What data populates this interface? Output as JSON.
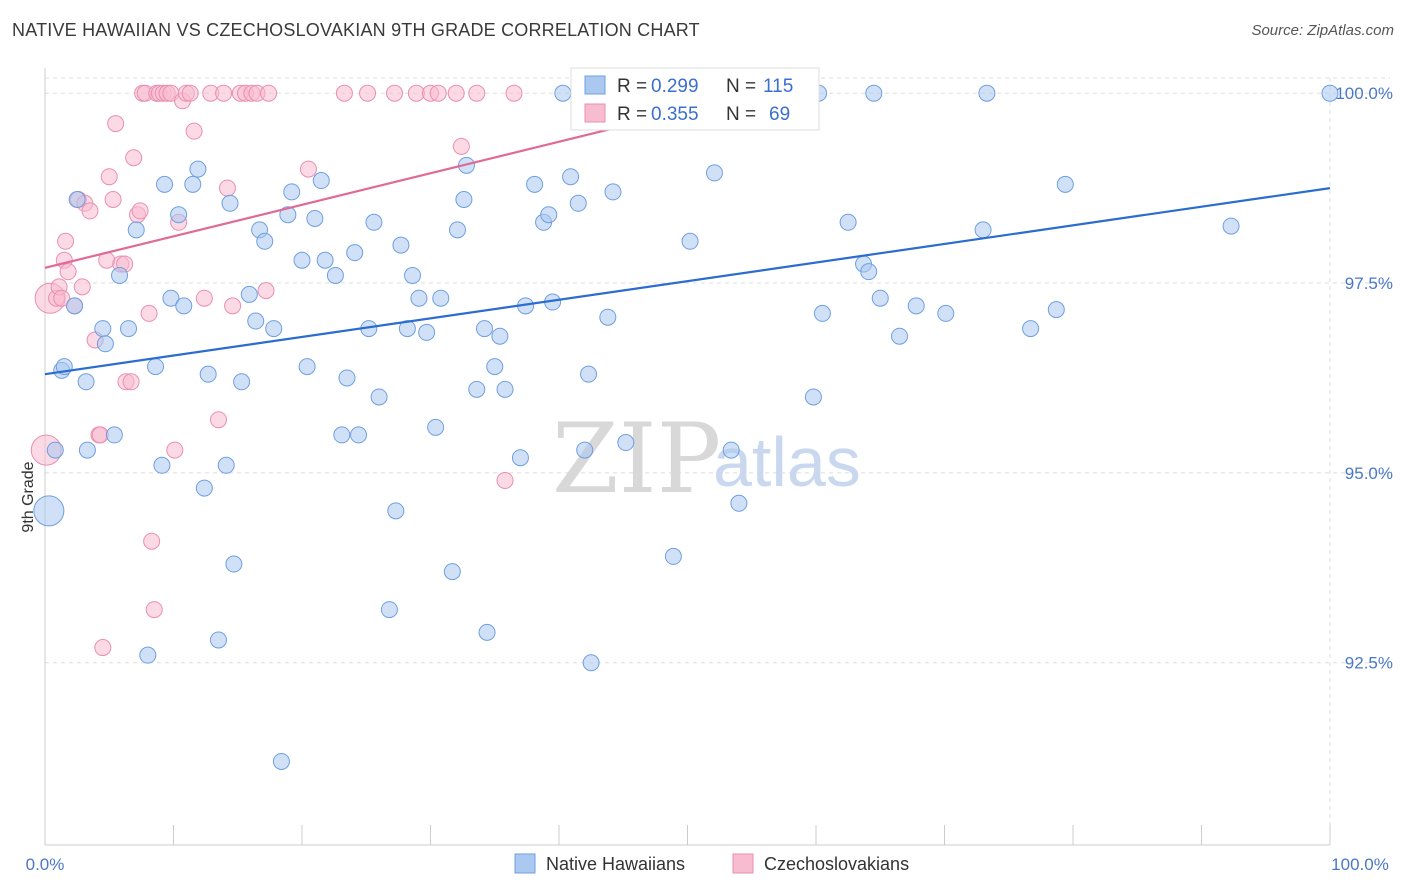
{
  "title": "NATIVE HAWAIIAN VS CZECHOSLOVAKIAN 9TH GRADE CORRELATION CHART",
  "source": "Source: ZipAtlas.com",
  "watermark": {
    "zip": "ZIP",
    "atlas": "atlas"
  },
  "legend_box": {
    "rows": [
      {
        "r_label": "R =",
        "r_value": "0.299",
        "n_label": "N =",
        "n_value": "115"
      },
      {
        "r_label": "R =",
        "r_value": "0.355",
        "n_label": "N =",
        "n_value": "69"
      }
    ]
  },
  "bottom_legend": [
    "Native Hawaiians",
    "Czechoslovakians"
  ],
  "colors": {
    "blue_fill": "#aac8f0",
    "blue_stroke": "#6f9fe0",
    "blue_line": "#2b6ccf",
    "pink_fill": "#f7bcd0",
    "pink_stroke": "#ea8fb0",
    "pink_line": "#e06a95",
    "grid": "#dddddd",
    "tick_text": "#4a78c8"
  },
  "chart_data": {
    "type": "scatter",
    "title": "NATIVE HAWAIIAN VS CZECHOSLOVAKIAN 9TH GRADE CORRELATION CHART",
    "xlabel": "",
    "ylabel": "9th Grade",
    "xlim": [
      0,
      100
    ],
    "ylim": [
      90.1,
      100.2
    ],
    "x_tick_labels": [
      "0.0%",
      "100.0%"
    ],
    "y_ticks": [
      92.5,
      95.0,
      97.5,
      100.0
    ],
    "y_tick_labels": [
      "92.5%",
      "95.0%",
      "97.5%",
      "100.0%"
    ],
    "grid": true,
    "legend_position": "top-center",
    "series": [
      {
        "name": "Native Hawaiians",
        "color": "#aac8f0",
        "R": 0.299,
        "N": 115,
        "trend": {
          "x": [
            0,
            100
          ],
          "y": [
            96.3,
            98.75
          ]
        },
        "points": [
          [
            0.3,
            94.5
          ],
          [
            0.8,
            95.3
          ],
          [
            1.3,
            96.35
          ],
          [
            1.5,
            96.4
          ],
          [
            2.3,
            97.2
          ],
          [
            2.5,
            98.6
          ],
          [
            3.2,
            96.2
          ],
          [
            3.3,
            95.3
          ],
          [
            4.5,
            96.9
          ],
          [
            4.7,
            96.7
          ],
          [
            5.4,
            95.5
          ],
          [
            5.8,
            97.6
          ],
          [
            6.5,
            96.9
          ],
          [
            7.1,
            98.2
          ],
          [
            8.0,
            92.6
          ],
          [
            8.6,
            96.4
          ],
          [
            9.1,
            95.1
          ],
          [
            9.3,
            98.8
          ],
          [
            9.8,
            97.3
          ],
          [
            10.4,
            98.4
          ],
          [
            10.8,
            97.2
          ],
          [
            11.5,
            98.8
          ],
          [
            11.9,
            99.0
          ],
          [
            12.4,
            94.8
          ],
          [
            12.7,
            96.3
          ],
          [
            13.5,
            92.8
          ],
          [
            14.1,
            95.1
          ],
          [
            14.4,
            98.55
          ],
          [
            14.7,
            93.8
          ],
          [
            15.3,
            96.2
          ],
          [
            15.9,
            97.35
          ],
          [
            16.4,
            97.0
          ],
          [
            16.7,
            98.2
          ],
          [
            17.1,
            98.05
          ],
          [
            17.8,
            96.9
          ],
          [
            18.4,
            91.2
          ],
          [
            18.9,
            98.4
          ],
          [
            19.2,
            98.7
          ],
          [
            20.0,
            97.8
          ],
          [
            20.4,
            96.4
          ],
          [
            21.0,
            98.35
          ],
          [
            21.5,
            98.85
          ],
          [
            21.8,
            97.8
          ],
          [
            22.6,
            97.6
          ],
          [
            23.1,
            95.5
          ],
          [
            23.5,
            96.25
          ],
          [
            24.1,
            97.9
          ],
          [
            24.4,
            95.5
          ],
          [
            25.2,
            96.9
          ],
          [
            25.6,
            98.3
          ],
          [
            26.0,
            96.0
          ],
          [
            26.8,
            93.2
          ],
          [
            27.3,
            94.5
          ],
          [
            27.7,
            98.0
          ],
          [
            28.2,
            96.9
          ],
          [
            28.6,
            97.6
          ],
          [
            29.1,
            97.3
          ],
          [
            29.7,
            96.85
          ],
          [
            30.4,
            95.6
          ],
          [
            30.8,
            97.3
          ],
          [
            31.7,
            93.7
          ],
          [
            32.1,
            98.2
          ],
          [
            32.6,
            98.6
          ],
          [
            32.8,
            99.05
          ],
          [
            33.6,
            96.1
          ],
          [
            34.2,
            96.9
          ],
          [
            34.4,
            92.9
          ],
          [
            35.0,
            96.4
          ],
          [
            35.4,
            96.8
          ],
          [
            35.8,
            96.1
          ],
          [
            37.0,
            95.2
          ],
          [
            37.4,
            97.2
          ],
          [
            38.1,
            98.8
          ],
          [
            38.8,
            98.3
          ],
          [
            39.2,
            98.4
          ],
          [
            39.5,
            97.25
          ],
          [
            40.3,
            100.0
          ],
          [
            40.9,
            98.9
          ],
          [
            41.5,
            98.55
          ],
          [
            42.0,
            95.3
          ],
          [
            42.3,
            96.3
          ],
          [
            42.5,
            92.5
          ],
          [
            42.8,
            100.0
          ],
          [
            43.8,
            97.05
          ],
          [
            44.2,
            98.7
          ],
          [
            45.2,
            95.4
          ],
          [
            46.0,
            100.0
          ],
          [
            48.9,
            93.9
          ],
          [
            50.2,
            98.05
          ],
          [
            52.1,
            98.95
          ],
          [
            53.4,
            95.3
          ],
          [
            54.0,
            94.6
          ],
          [
            58.9,
            100.0
          ],
          [
            59.8,
            96.0
          ],
          [
            60.2,
            100.0
          ],
          [
            60.5,
            97.1
          ],
          [
            62.5,
            98.3
          ],
          [
            63.7,
            97.75
          ],
          [
            64.1,
            97.65
          ],
          [
            64.5,
            100.0
          ],
          [
            65.0,
            97.3
          ],
          [
            66.5,
            96.8
          ],
          [
            67.8,
            97.2
          ],
          [
            70.1,
            97.1
          ],
          [
            73.3,
            100.0
          ],
          [
            73.0,
            98.2
          ],
          [
            76.7,
            96.9
          ],
          [
            78.7,
            97.15
          ],
          [
            79.4,
            98.8
          ],
          [
            92.3,
            98.25
          ],
          [
            100.0,
            100.0
          ]
        ]
      },
      {
        "name": "Czechoslovakians",
        "color": "#f7bcd0",
        "R": 0.355,
        "N": 69,
        "trend": {
          "x": [
            0,
            55.4
          ],
          "y": [
            97.7,
            100.0
          ]
        },
        "points": [
          [
            0.1,
            95.3
          ],
          [
            0.4,
            97.3
          ],
          [
            0.9,
            97.3
          ],
          [
            1.1,
            97.45
          ],
          [
            1.3,
            97.3
          ],
          [
            1.5,
            97.8
          ],
          [
            1.6,
            98.05
          ],
          [
            1.8,
            97.65
          ],
          [
            2.3,
            97.2
          ],
          [
            2.6,
            98.6
          ],
          [
            2.9,
            97.45
          ],
          [
            3.1,
            98.55
          ],
          [
            3.5,
            98.45
          ],
          [
            3.9,
            96.75
          ],
          [
            4.2,
            95.5
          ],
          [
            4.3,
            95.5
          ],
          [
            4.5,
            92.7
          ],
          [
            4.8,
            97.8
          ],
          [
            5.0,
            98.9
          ],
          [
            5.3,
            98.6
          ],
          [
            5.5,
            99.6
          ],
          [
            5.9,
            97.75
          ],
          [
            6.2,
            97.75
          ],
          [
            6.3,
            96.2
          ],
          [
            6.7,
            96.2
          ],
          [
            6.9,
            99.15
          ],
          [
            7.2,
            98.4
          ],
          [
            7.4,
            98.45
          ],
          [
            7.6,
            100.0
          ],
          [
            7.8,
            100.0
          ],
          [
            8.1,
            97.1
          ],
          [
            8.3,
            94.1
          ],
          [
            8.5,
            93.2
          ],
          [
            8.7,
            100.0
          ],
          [
            8.9,
            100.0
          ],
          [
            9.2,
            100.0
          ],
          [
            9.5,
            100.0
          ],
          [
            9.8,
            100.0
          ],
          [
            10.1,
            95.3
          ],
          [
            10.4,
            98.3
          ],
          [
            10.7,
            99.9
          ],
          [
            11.0,
            100.0
          ],
          [
            11.3,
            100.0
          ],
          [
            11.6,
            99.5
          ],
          [
            12.4,
            97.3
          ],
          [
            12.9,
            100.0
          ],
          [
            13.5,
            95.7
          ],
          [
            13.9,
            100.0
          ],
          [
            14.2,
            98.75
          ],
          [
            14.6,
            97.2
          ],
          [
            15.2,
            100.0
          ],
          [
            15.6,
            100.0
          ],
          [
            16.1,
            100.0
          ],
          [
            16.5,
            100.0
          ],
          [
            17.2,
            97.4
          ],
          [
            17.4,
            100.0
          ],
          [
            20.5,
            99.0
          ],
          [
            23.3,
            100.0
          ],
          [
            25.1,
            100.0
          ],
          [
            27.2,
            100.0
          ],
          [
            28.9,
            100.0
          ],
          [
            30.0,
            100.0
          ],
          [
            30.6,
            100.0
          ],
          [
            32.0,
            100.0
          ],
          [
            33.6,
            100.0
          ],
          [
            32.4,
            99.3
          ],
          [
            35.8,
            94.9
          ],
          [
            36.5,
            100.0
          ],
          [
            53.8,
            100.0
          ]
        ]
      }
    ]
  }
}
